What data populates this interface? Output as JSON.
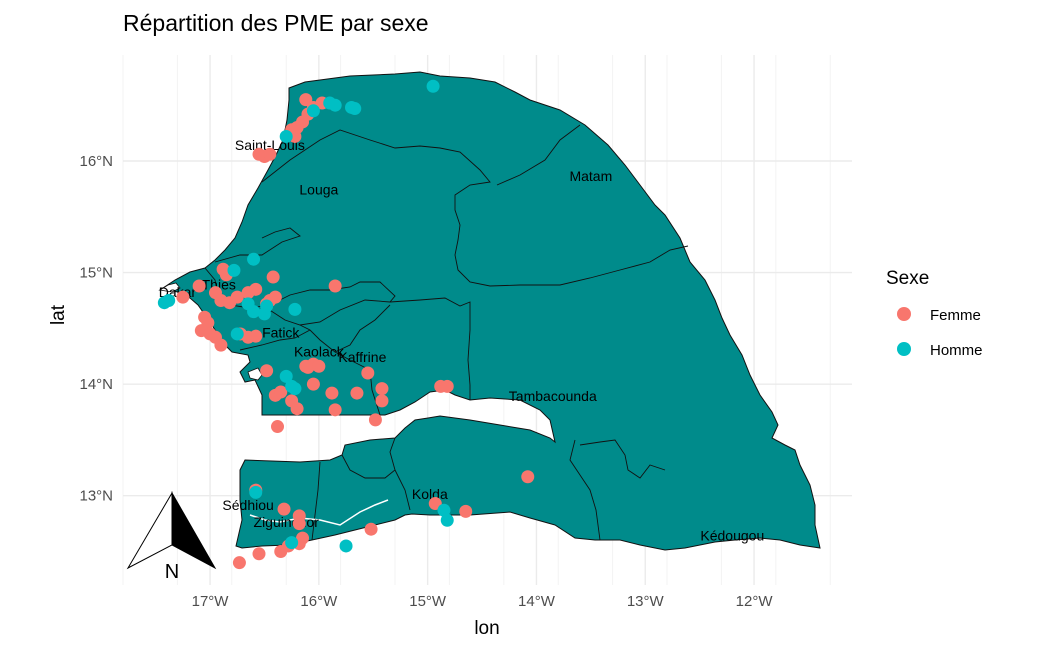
{
  "chart_data": {
    "type": "scatter",
    "title": "Répartition des PME par sexe",
    "xlabel": "lon",
    "ylabel": "lat",
    "xlim": [
      -17.8,
      -11.1
    ],
    "ylim": [
      12.2,
      16.95
    ],
    "x_ticks": [
      -17,
      -16,
      -15,
      -14,
      -13,
      -12
    ],
    "x_tick_labels": [
      "17°W",
      "16°W",
      "15°W",
      "14°W",
      "13°W",
      "12°W"
    ],
    "y_ticks": [
      13,
      14,
      15,
      16
    ],
    "y_tick_labels": [
      "13°N",
      "14°N",
      "15°N",
      "16°N"
    ],
    "grid": true,
    "legend": {
      "title": "Sexe",
      "position": "right"
    },
    "colors": {
      "map_fill": "#008B8B",
      "border": "#111111",
      "grid": "#ebebeb"
    },
    "regions": [
      {
        "name": "Saint-Louis",
        "lon": -16.45,
        "lat": 16.1
      },
      {
        "name": "Louga",
        "lon": -16.0,
        "lat": 15.7
      },
      {
        "name": "Matam",
        "lon": -13.5,
        "lat": 15.82
      },
      {
        "name": "Dakar",
        "lon": -17.3,
        "lat": 14.78
      },
      {
        "name": "Thiès",
        "lon": -16.92,
        "lat": 14.85
      },
      {
        "name": "Fatick",
        "lon": -16.35,
        "lat": 14.42
      },
      {
        "name": "Kaolack",
        "lon": -16.0,
        "lat": 14.25
      },
      {
        "name": "Kaffrine",
        "lon": -15.6,
        "lat": 14.2
      },
      {
        "name": "Tambacounda",
        "lon": -13.85,
        "lat": 13.85
      },
      {
        "name": "Kolda",
        "lon": -14.98,
        "lat": 12.97
      },
      {
        "name": "Sédhiou",
        "lon": -16.65,
        "lat": 12.87
      },
      {
        "name": "Ziguinchor",
        "lon": -16.3,
        "lat": 12.72
      },
      {
        "name": "Kédougou",
        "lon": -12.2,
        "lat": 12.6
      }
    ],
    "series": [
      {
        "name": "Femme",
        "color": "#F8766D",
        "points": [
          [
            -16.12,
            16.55
          ],
          [
            -16.05,
            16.48
          ],
          [
            -15.97,
            16.52
          ],
          [
            -16.1,
            16.42
          ],
          [
            -16.15,
            16.35
          ],
          [
            -16.2,
            16.3
          ],
          [
            -16.25,
            16.28
          ],
          [
            -16.22,
            16.22
          ],
          [
            -16.55,
            16.06
          ],
          [
            -16.5,
            16.04
          ],
          [
            -16.45,
            16.06
          ],
          [
            -17.25,
            14.78
          ],
          [
            -17.1,
            14.88
          ],
          [
            -16.88,
            15.03
          ],
          [
            -16.85,
            14.98
          ],
          [
            -16.95,
            14.82
          ],
          [
            -16.9,
            14.75
          ],
          [
            -16.82,
            14.73
          ],
          [
            -16.75,
            14.78
          ],
          [
            -16.65,
            14.82
          ],
          [
            -16.58,
            14.85
          ],
          [
            -16.42,
            14.96
          ],
          [
            -16.45,
            14.75
          ],
          [
            -16.4,
            14.78
          ],
          [
            -16.48,
            14.72
          ],
          [
            -15.85,
            14.88
          ],
          [
            -17.05,
            14.6
          ],
          [
            -17.02,
            14.55
          ],
          [
            -17.08,
            14.48
          ],
          [
            -17.0,
            14.45
          ],
          [
            -16.95,
            14.42
          ],
          [
            -16.9,
            14.35
          ],
          [
            -16.72,
            14.45
          ],
          [
            -16.65,
            14.42
          ],
          [
            -16.58,
            14.43
          ],
          [
            -16.48,
            14.12
          ],
          [
            -16.12,
            14.16
          ],
          [
            -16.05,
            14.18
          ],
          [
            -16.1,
            14.15
          ],
          [
            -16.0,
            14.16
          ],
          [
            -15.55,
            14.1
          ],
          [
            -15.42,
            13.96
          ],
          [
            -15.42,
            13.85
          ],
          [
            -14.88,
            13.98
          ],
          [
            -14.82,
            13.98
          ],
          [
            -16.05,
            14.0
          ],
          [
            -15.88,
            13.92
          ],
          [
            -15.65,
            13.92
          ],
          [
            -16.4,
            13.9
          ],
          [
            -16.35,
            13.93
          ],
          [
            -16.25,
            13.85
          ],
          [
            -16.2,
            13.78
          ],
          [
            -15.85,
            13.77
          ],
          [
            -15.48,
            13.68
          ],
          [
            -16.38,
            13.62
          ],
          [
            -14.08,
            13.17
          ],
          [
            -14.65,
            12.86
          ],
          [
            -14.93,
            12.93
          ],
          [
            -15.52,
            12.7
          ],
          [
            -16.58,
            13.05
          ],
          [
            -16.32,
            12.88
          ],
          [
            -16.18,
            12.82
          ],
          [
            -16.18,
            12.75
          ],
          [
            -16.15,
            12.62
          ],
          [
            -16.18,
            12.57
          ],
          [
            -16.28,
            12.55
          ],
          [
            -16.35,
            12.5
          ],
          [
            -16.55,
            12.48
          ],
          [
            -16.73,
            12.4
          ]
        ]
      },
      {
        "name": "Homme",
        "color": "#00BFC4",
        "points": [
          [
            -14.95,
            16.67
          ],
          [
            -16.05,
            16.45
          ],
          [
            -15.85,
            16.5
          ],
          [
            -15.9,
            16.52
          ],
          [
            -15.7,
            16.48
          ],
          [
            -15.67,
            16.47
          ],
          [
            -16.3,
            16.22
          ],
          [
            -17.42,
            14.73
          ],
          [
            -17.38,
            14.75
          ],
          [
            -16.78,
            15.02
          ],
          [
            -16.6,
            15.12
          ],
          [
            -16.65,
            14.72
          ],
          [
            -16.6,
            14.65
          ],
          [
            -16.5,
            14.63
          ],
          [
            -16.48,
            14.7
          ],
          [
            -16.22,
            14.67
          ],
          [
            -16.75,
            14.45
          ],
          [
            -16.3,
            14.07
          ],
          [
            -16.25,
            13.98
          ],
          [
            -16.22,
            13.96
          ],
          [
            -14.85,
            12.87
          ],
          [
            -14.82,
            12.78
          ],
          [
            -15.75,
            12.55
          ],
          [
            -16.58,
            13.03
          ],
          [
            -16.25,
            12.58
          ]
        ]
      }
    ]
  },
  "north_arrow": {
    "label": "N"
  }
}
